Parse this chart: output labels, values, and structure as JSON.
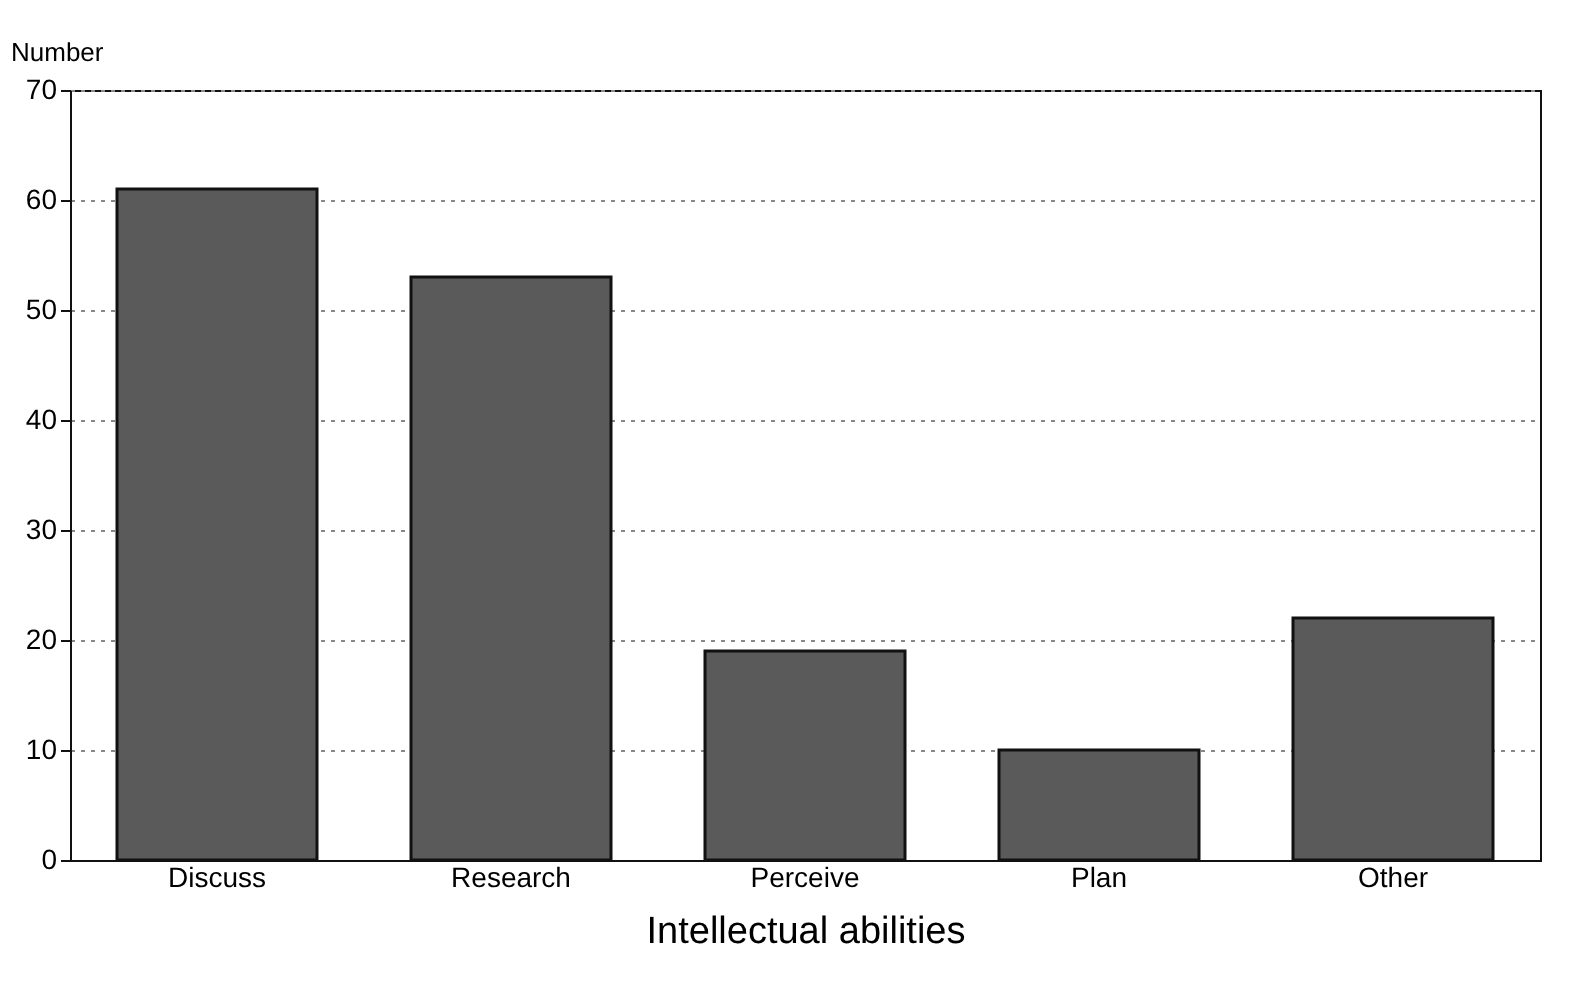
{
  "chart_data": {
    "type": "bar",
    "ylabel": "Number",
    "xlabel": "Intellectual abilities",
    "categories": [
      "Discuss",
      "Research",
      "Perceive",
      "Plan",
      "Other"
    ],
    "values": [
      61,
      53,
      19,
      10,
      22
    ],
    "color": "#5a5a5a",
    "ylim": [
      0,
      70
    ],
    "yticks": [
      0,
      10,
      20,
      30,
      40,
      50,
      60,
      70
    ],
    "grid": "y"
  }
}
